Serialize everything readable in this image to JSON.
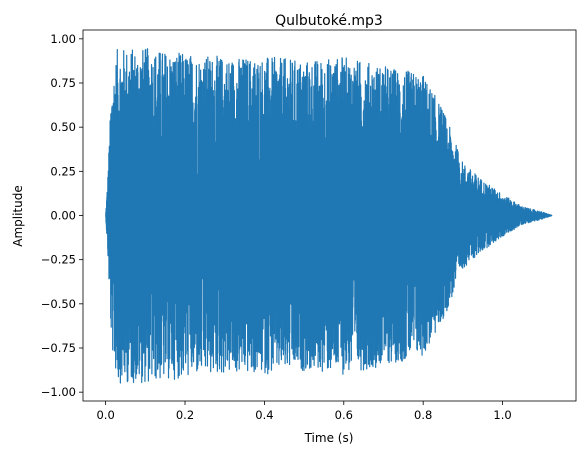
{
  "chart_data": {
    "type": "line",
    "title": "Qulbutoké.mp3",
    "xlabel": "Time (s)",
    "ylabel": "Amplitude",
    "xlim": [
      -0.057,
      1.185
    ],
    "ylim": [
      -1.05,
      1.05
    ],
    "x_ticks": [
      0.0,
      0.2,
      0.4,
      0.6,
      0.8,
      1.0
    ],
    "x_tick_labels": [
      "0.0",
      "0.2",
      "0.4",
      "0.6",
      "0.8",
      "1.0"
    ],
    "y_ticks": [
      -1.0,
      -0.75,
      -0.5,
      -0.25,
      0.0,
      0.25,
      0.5,
      0.75,
      1.0
    ],
    "y_tick_labels": [
      "−1.00",
      "−0.75",
      "−0.50",
      "−0.25",
      "0.00",
      "0.25",
      "0.50",
      "0.75",
      "1.00"
    ],
    "grid": false,
    "series": [
      {
        "color": "#1f77b4",
        "duration": 1.125,
        "envelope": [
          [
            0.0,
            0.0
          ],
          [
            0.005,
            0.2
          ],
          [
            0.015,
            0.75
          ],
          [
            0.03,
            0.95
          ],
          [
            0.1,
            0.95
          ],
          [
            0.2,
            0.92
          ],
          [
            0.3,
            0.9
          ],
          [
            0.4,
            0.9
          ],
          [
            0.5,
            0.88
          ],
          [
            0.6,
            0.9
          ],
          [
            0.7,
            0.85
          ],
          [
            0.8,
            0.8
          ],
          [
            0.85,
            0.6
          ],
          [
            0.9,
            0.3
          ],
          [
            0.95,
            0.2
          ],
          [
            1.0,
            0.12
          ],
          [
            1.05,
            0.05
          ],
          [
            1.1,
            0.02
          ],
          [
            1.125,
            0.0
          ]
        ]
      }
    ]
  }
}
